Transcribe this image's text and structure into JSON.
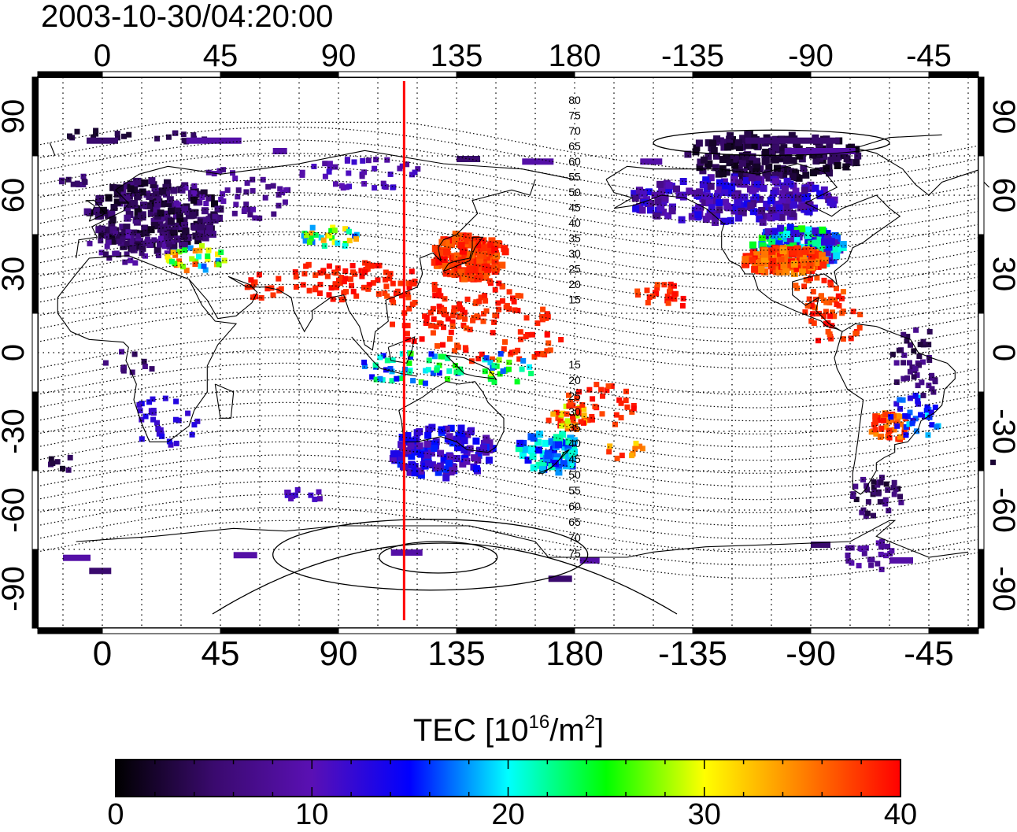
{
  "title": "2003-10-30/04:20:00",
  "colorbar": {
    "label_prefix": "TEC  [10",
    "label_exp1": "16",
    "label_mid": "/m",
    "label_exp2": "2",
    "label_suffix": "]",
    "min": 0,
    "max": 40,
    "ticks": [
      "0",
      "10",
      "20",
      "30",
      "40"
    ],
    "gradient": [
      "#000000",
      "#3a0a6e",
      "#5a10b4",
      "#0000ff",
      "#00ffff",
      "#00ff00",
      "#ffff00",
      "#ff8000",
      "#ff0000"
    ]
  },
  "map": {
    "lon_labels": [
      "0",
      "45",
      "90",
      "135",
      "180",
      "-135",
      "-90",
      "-45"
    ],
    "lat_labels": [
      "90",
      "60",
      "30",
      "0",
      "-30",
      "-60",
      "-90"
    ],
    "mag_lat_labels_north": [
      "80",
      "75",
      "70",
      "65",
      "60",
      "55",
      "50",
      "45",
      "40",
      "35",
      "30",
      "25",
      "20",
      "15"
    ],
    "mag_lat_labels_south": [
      "15",
      "20",
      "25",
      "30",
      "35",
      "40",
      "45",
      "50",
      "55",
      "60",
      "65",
      "70",
      "75"
    ],
    "red_line_color": "#ff0000",
    "terminator_longitude": 115
  }
}
